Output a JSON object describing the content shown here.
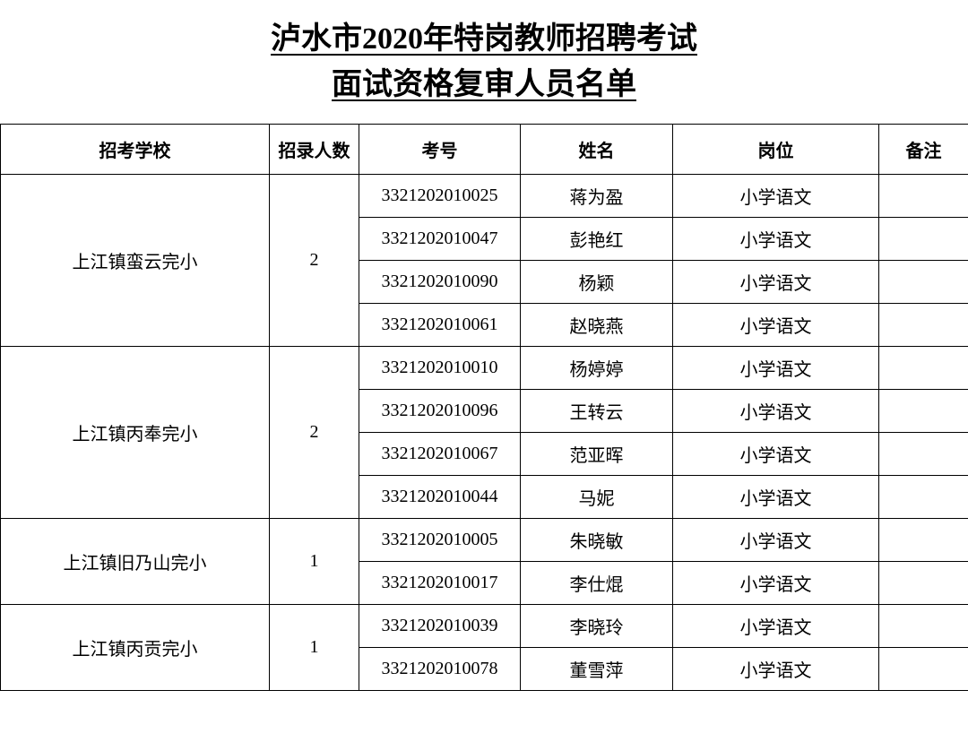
{
  "title": {
    "line1": "泸水市2020年特岗教师招聘考试",
    "line2": "面试资格复审人员名单"
  },
  "headers": {
    "school": "招考学校",
    "count": "招录人数",
    "exam_no": "考号",
    "name": "姓名",
    "position": "岗位",
    "note": "备注"
  },
  "groups": [
    {
      "school": "上江镇蛮云完小",
      "count": "2",
      "rows": [
        {
          "exam_no": "3321202010025",
          "name": "蒋为盈",
          "position": "小学语文",
          "note": ""
        },
        {
          "exam_no": "3321202010047",
          "name": "彭艳红",
          "position": "小学语文",
          "note": ""
        },
        {
          "exam_no": "3321202010090",
          "name": "杨颖",
          "position": "小学语文",
          "note": ""
        },
        {
          "exam_no": "3321202010061",
          "name": "赵晓燕",
          "position": "小学语文",
          "note": ""
        }
      ]
    },
    {
      "school": "上江镇丙奉完小",
      "count": "2",
      "rows": [
        {
          "exam_no": "3321202010010",
          "name": "杨婷婷",
          "position": "小学语文",
          "note": ""
        },
        {
          "exam_no": "3321202010096",
          "name": "王转云",
          "position": "小学语文",
          "note": ""
        },
        {
          "exam_no": "3321202010067",
          "name": "范亚晖",
          "position": "小学语文",
          "note": ""
        },
        {
          "exam_no": "3321202010044",
          "name": "马妮",
          "position": "小学语文",
          "note": ""
        }
      ]
    },
    {
      "school": "上江镇旧乃山完小",
      "count": "1",
      "rows": [
        {
          "exam_no": "3321202010005",
          "name": "朱晓敏",
          "position": "小学语文",
          "note": ""
        },
        {
          "exam_no": "3321202010017",
          "name": "李仕焜",
          "position": "小学语文",
          "note": ""
        }
      ]
    },
    {
      "school": "上江镇丙贡完小",
      "count": "1",
      "rows": [
        {
          "exam_no": "3321202010039",
          "name": "李晓玲",
          "position": "小学语文",
          "note": ""
        },
        {
          "exam_no": "3321202010078",
          "name": "董雪萍",
          "position": "小学语文",
          "note": ""
        }
      ]
    }
  ]
}
